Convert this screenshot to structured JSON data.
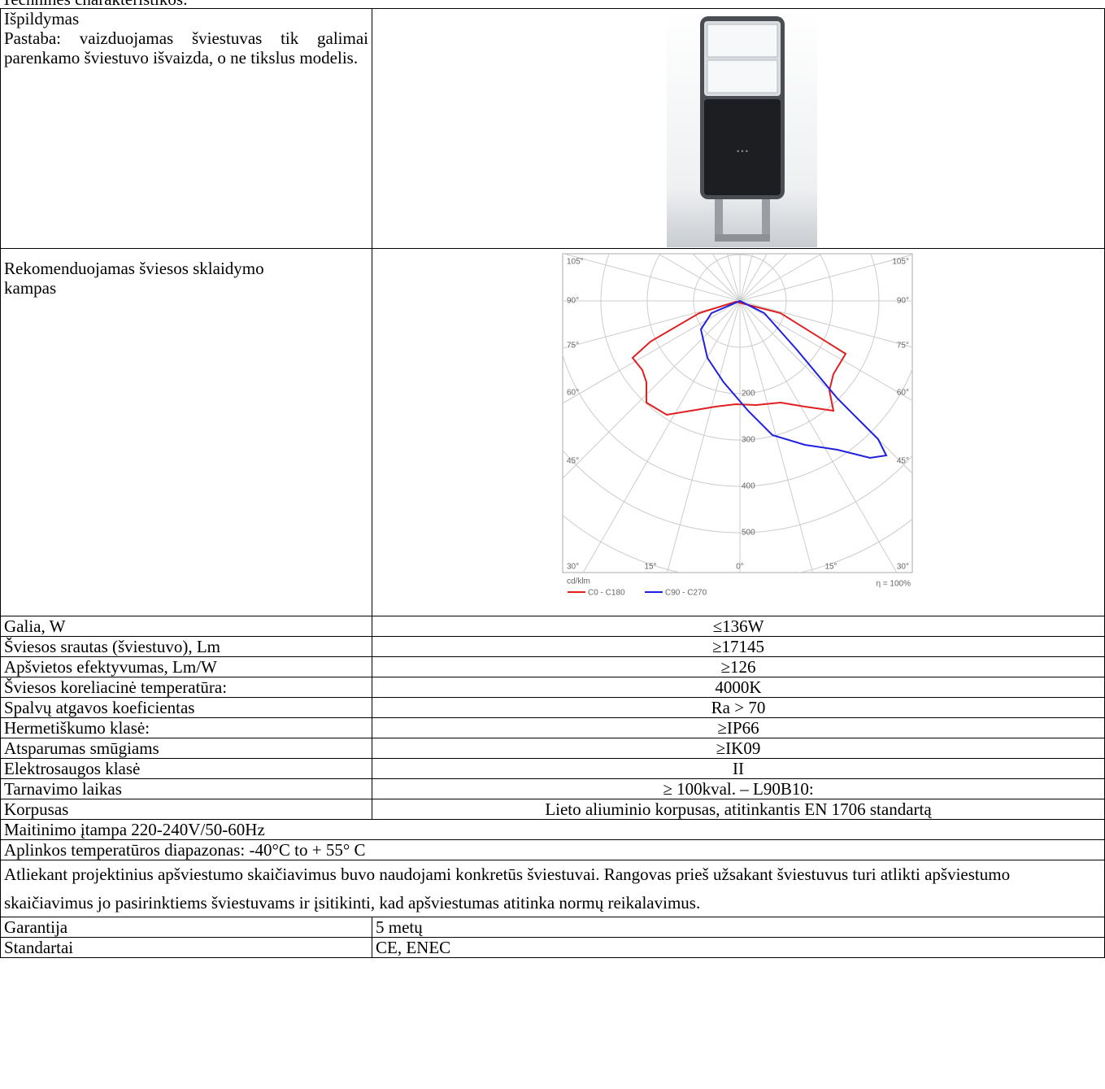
{
  "caption": "Techninės charakteristikos:",
  "photo_row": {
    "title": "Išpildymas",
    "note": "Pastaba: vaizduojamas šviestuvas tik galimai parenkamo šviestuvo išvaizda, o ne tikslus modelis."
  },
  "diagram_row": {
    "label": "Rekomenduojamas šviesos sklaidymo kampas"
  },
  "diagram": {
    "angles_left": [
      "105°",
      "90°",
      "75°",
      "60°",
      "45°",
      "30°"
    ],
    "angles_right": [
      "105°",
      "90°",
      "75°",
      "60°",
      "45°",
      "30°"
    ],
    "angles_bottom": [
      "15°",
      "0°",
      "15°"
    ],
    "radial_labels": [
      "200",
      "300",
      "400",
      "500"
    ],
    "unit": "cd/klm",
    "efficiency": "η = 100%",
    "legend": [
      "C0 - C180",
      "C90 - C270"
    ]
  },
  "rows": [
    [
      "Galia, W",
      "≤136W"
    ],
    [
      "Šviesos srautas (šviestuvo), Lm",
      "≥17145"
    ],
    [
      "Apšvietos efektyvumas, Lm/W",
      "≥126"
    ],
    [
      "Šviesos koreliacinė temperatūra:",
      "4000K"
    ],
    [
      "Spalvų atgavos koeficientas",
      "Ra > 70"
    ],
    [
      "Hermetiškumo klasė:",
      "≥IP66"
    ],
    [
      "Atsparumas smūgiams",
      "≥IK09"
    ],
    [
      "Elektrosaugos klasė",
      "II"
    ],
    [
      "Tarnavimo laikas",
      "≥ 100kval. – L90B10:"
    ],
    [
      "Korpusas",
      "Lieto aliuminio korpusas, atitinkantis EN 1706 standartą"
    ]
  ],
  "full_rows": [
    "Maitinimo įtampa 220-240V/50-60Hz",
    "Aplinkos temperatūros diapazonas: -40°C to + 55° C",
    "Atliekant projektinius apšviestumo skaičiavimus buvo naudojami konkretūs šviestuvai. Rangovas prieš užsakant šviestuvus turi atlikti apšviestumo skaičiavimus jo pasirinktiems šviestuvams ir įsitikinti, kad apšviestumas atitinka normų reikalavimus."
  ],
  "bottom_rows": [
    [
      "Garantija",
      "5 metų"
    ],
    [
      "Standartai",
      "CE, ENEC"
    ]
  ]
}
